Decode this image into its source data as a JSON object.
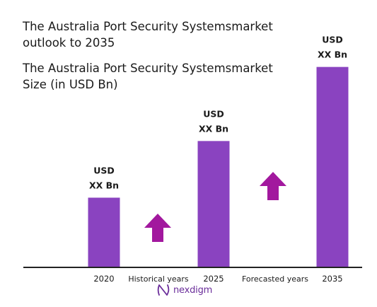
{
  "header": {
    "title_line1": "The Australia Port Security Systemsmarket",
    "title_line2": "outlook to 2035",
    "subtitle_line1": "The Australia Port Security Systemsmarket",
    "subtitle_line2": "Size (in USD Bn)"
  },
  "colors": {
    "bar": "#8a43c0",
    "arrow": "#a2189e",
    "axis": "#222222",
    "text": "#1a1a1a"
  },
  "chart_data": {
    "type": "bar",
    "categories": [
      "2020",
      "2025",
      "2035"
    ],
    "values": [
      0.32,
      0.58,
      0.92
    ],
    "value_scale_note": "",
    "data_labels": [
      [
        "USD",
        "XX Bn"
      ],
      [
        "USD",
        "XX Bn"
      ],
      [
        "USD",
        "XX Bn"
      ]
    ],
    "annotations": [
      {
        "text": "Historical years",
        "between": [
          "2020",
          "2025"
        ],
        "arrow": "up"
      },
      {
        "text": "Forecasted years",
        "between": [
          "2025",
          "2035"
        ],
        "arrow": "up"
      }
    ],
    "title": "The Australia Port Security Systemsmarket Size (in USD Bn)",
    "xlabel": "",
    "ylabel": "",
    "ylim": [
      0,
      1
    ],
    "grid": false,
    "legend": "none"
  },
  "branding": {
    "logo_text": "nexdigm",
    "logo_icon": "nexdigm-logo-icon"
  }
}
